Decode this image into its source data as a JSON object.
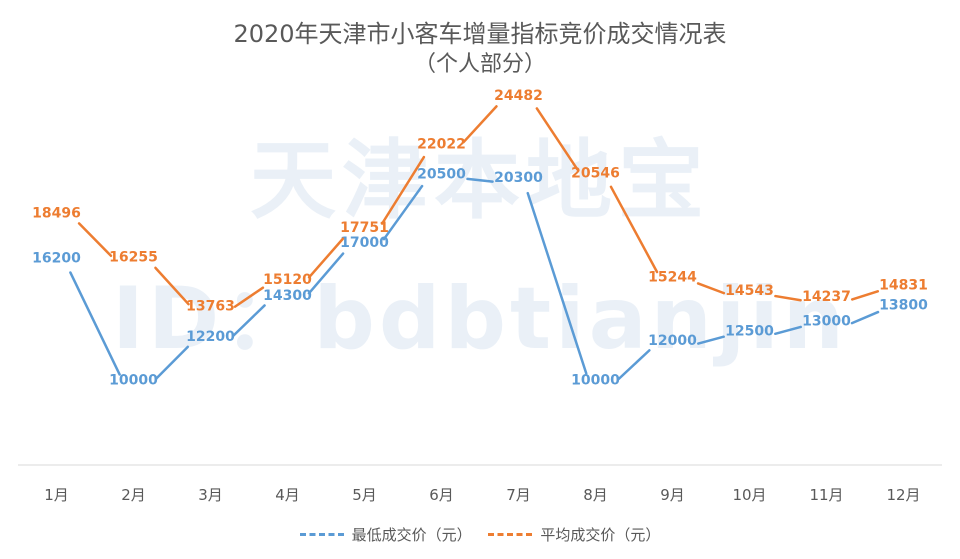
{
  "chart_data": {
    "type": "line",
    "title": "2020年天津市小客车增量指标竞价成交情况表",
    "subtitle": "（个人部分）",
    "watermark_line1": "天津本地宝",
    "watermark_line2": "ID：bdbtianjin",
    "categories": [
      "1月",
      "2月",
      "3月",
      "4月",
      "5月",
      "6月",
      "7月",
      "8月",
      "9月",
      "10月",
      "11月",
      "12月"
    ],
    "series": [
      {
        "name": "最低成交价（元）",
        "color": "#5b9bd5",
        "values": [
          16200,
          10000,
          12200,
          14300,
          17000,
          20500,
          20300,
          10000,
          12000,
          12500,
          13000,
          13800
        ]
      },
      {
        "name": "平均成交价（元）",
        "color": "#ed7d31",
        "values": [
          18496,
          16255,
          13763,
          15120,
          17751,
          22022,
          24482,
          20546,
          15244,
          14543,
          14237,
          14831
        ]
      }
    ],
    "xlabel": "",
    "ylabel": "",
    "grid": false,
    "legend_position": "bottom"
  }
}
